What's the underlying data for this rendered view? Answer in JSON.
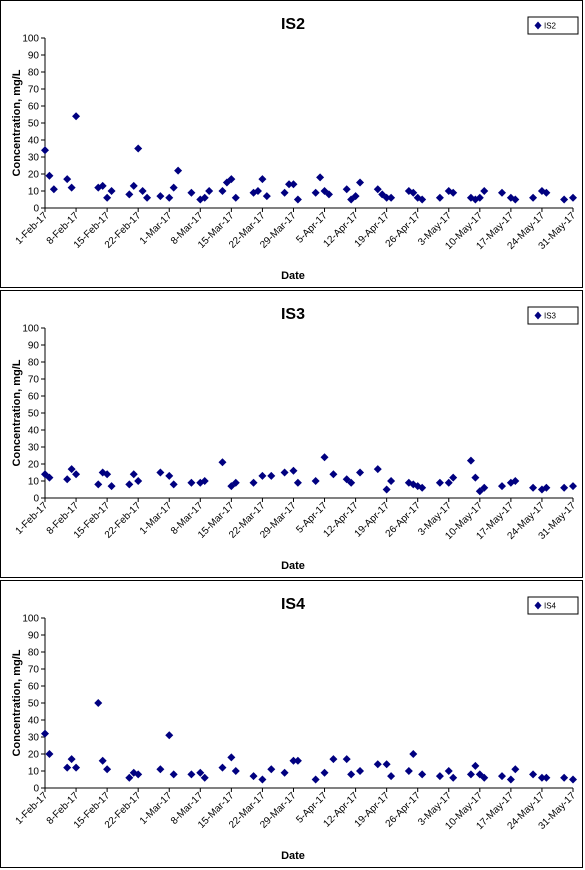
{
  "chart_data": [
    {
      "type": "scatter",
      "title": "IS2",
      "xlabel": "Date",
      "ylabel": "Concentration, mg/L",
      "ylim": [
        0,
        100
      ],
      "yticks": [
        0,
        10,
        20,
        30,
        40,
        50,
        60,
        70,
        80,
        90,
        100
      ],
      "xlim": [
        "2017-02-01",
        "2017-05-31"
      ],
      "xtick_labels": [
        "1-Feb-17",
        "8-Feb-17",
        "15-Feb-17",
        "22-Feb-17",
        "1-Mar-17",
        "8-Mar-17",
        "15-Mar-17",
        "22-Mar-17",
        "29-Mar-17",
        "5-Apr-17",
        "12-Apr-17",
        "19-Apr-17",
        "26-Apr-17",
        "3-May-17",
        "10-May-17",
        "17-May-17",
        "24-May-17",
        "31-May-17"
      ],
      "legend": "top-right",
      "marker": "diamond",
      "color": "#000080",
      "series": [
        {
          "name": "IS2",
          "x": [
            "2017-02-01",
            "2017-02-02",
            "2017-02-03",
            "2017-02-06",
            "2017-02-07",
            "2017-02-08",
            "2017-02-13",
            "2017-02-14",
            "2017-02-15",
            "2017-02-16",
            "2017-02-20",
            "2017-02-21",
            "2017-02-22",
            "2017-02-23",
            "2017-02-24",
            "2017-02-27",
            "2017-03-01",
            "2017-03-02",
            "2017-03-03",
            "2017-03-06",
            "2017-03-08",
            "2017-03-09",
            "2017-03-10",
            "2017-03-13",
            "2017-03-14",
            "2017-03-15",
            "2017-03-16",
            "2017-03-20",
            "2017-03-21",
            "2017-03-22",
            "2017-03-23",
            "2017-03-27",
            "2017-03-28",
            "2017-03-29",
            "2017-03-30",
            "2017-04-03",
            "2017-04-04",
            "2017-04-05",
            "2017-04-06",
            "2017-04-10",
            "2017-04-11",
            "2017-04-12",
            "2017-04-13",
            "2017-04-17",
            "2017-04-18",
            "2017-04-19",
            "2017-04-20",
            "2017-04-24",
            "2017-04-25",
            "2017-04-26",
            "2017-04-27",
            "2017-05-01",
            "2017-05-03",
            "2017-05-04",
            "2017-05-08",
            "2017-05-09",
            "2017-05-10",
            "2017-05-11",
            "2017-05-15",
            "2017-05-17",
            "2017-05-18",
            "2017-05-22",
            "2017-05-24",
            "2017-05-25",
            "2017-05-29",
            "2017-05-31"
          ],
          "y": [
            34,
            19,
            11,
            17,
            12,
            54,
            12,
            13,
            6,
            10,
            8,
            13,
            35,
            10,
            6,
            7,
            6,
            12,
            22,
            9,
            5,
            6,
            10,
            10,
            15,
            17,
            6,
            9,
            10,
            17,
            7,
            9,
            14,
            14,
            5,
            9,
            18,
            10,
            8,
            11,
            5,
            7,
            15,
            11,
            8,
            6,
            6,
            10,
            9,
            6,
            5,
            6,
            10,
            9,
            6,
            5,
            6,
            10,
            9,
            6,
            5,
            6,
            10,
            9,
            5,
            6
          ]
        }
      ]
    },
    {
      "type": "scatter",
      "title": "IS3",
      "xlabel": "Date",
      "ylabel": "Concentration, mg/L",
      "ylim": [
        0,
        100
      ],
      "yticks": [
        0,
        10,
        20,
        30,
        40,
        50,
        60,
        70,
        80,
        90,
        100
      ],
      "xlim": [
        "2017-02-01",
        "2017-05-31"
      ],
      "xtick_labels": [
        "1-Feb-17",
        "8-Feb-17",
        "15-Feb-17",
        "22-Feb-17",
        "1-Mar-17",
        "8-Mar-17",
        "15-Mar-17",
        "22-Mar-17",
        "29-Mar-17",
        "5-Apr-17",
        "12-Apr-17",
        "19-Apr-17",
        "26-Apr-17",
        "3-May-17",
        "10-May-17",
        "17-May-17",
        "24-May-17",
        "31-May-17"
      ],
      "legend": "top-right",
      "marker": "diamond",
      "color": "#000080",
      "series": [
        {
          "name": "IS3",
          "x": [
            "2017-02-01",
            "2017-02-02",
            "2017-02-06",
            "2017-02-07",
            "2017-02-08",
            "2017-02-13",
            "2017-02-14",
            "2017-02-15",
            "2017-02-16",
            "2017-02-20",
            "2017-02-21",
            "2017-02-22",
            "2017-02-27",
            "2017-03-01",
            "2017-03-02",
            "2017-03-06",
            "2017-03-08",
            "2017-03-09",
            "2017-03-13",
            "2017-03-15",
            "2017-03-16",
            "2017-03-20",
            "2017-03-22",
            "2017-03-24",
            "2017-03-27",
            "2017-03-29",
            "2017-03-30",
            "2017-04-03",
            "2017-04-05",
            "2017-04-07",
            "2017-04-10",
            "2017-04-11",
            "2017-04-13",
            "2017-04-17",
            "2017-04-19",
            "2017-04-20",
            "2017-04-24",
            "2017-04-25",
            "2017-04-26",
            "2017-04-27",
            "2017-05-01",
            "2017-05-03",
            "2017-05-04",
            "2017-05-08",
            "2017-05-09",
            "2017-05-10",
            "2017-05-11",
            "2017-05-15",
            "2017-05-17",
            "2017-05-18",
            "2017-05-22",
            "2017-05-24",
            "2017-05-25",
            "2017-05-29",
            "2017-05-31"
          ],
          "y": [
            14,
            12,
            11,
            17,
            14,
            8,
            15,
            14,
            7,
            8,
            14,
            10,
            15,
            13,
            8,
            9,
            9,
            10,
            21,
            7,
            9,
            9,
            13,
            13,
            15,
            16,
            9,
            10,
            24,
            14,
            11,
            9,
            15,
            17,
            5,
            10,
            9,
            8,
            7,
            6,
            9,
            9,
            12,
            22,
            12,
            4,
            6,
            7,
            9,
            10,
            6,
            5,
            6,
            6,
            7
          ]
        }
      ]
    },
    {
      "type": "scatter",
      "title": "IS4",
      "xlabel": "Date",
      "ylabel": "Concentration, mg/L",
      "ylim": [
        0,
        100
      ],
      "yticks": [
        0,
        10,
        20,
        30,
        40,
        50,
        60,
        70,
        80,
        90,
        100
      ],
      "xlim": [
        "2017-02-01",
        "2017-05-31"
      ],
      "xtick_labels": [
        "1-Feb-17",
        "8-Feb-17",
        "15-Feb-17",
        "22-Feb-17",
        "1-Mar-17",
        "8-Mar-17",
        "15-Mar-17",
        "22-Mar-17",
        "29-Mar-17",
        "5-Apr-17",
        "12-Apr-17",
        "19-Apr-17",
        "26-Apr-17",
        "3-May-17",
        "10-May-17",
        "17-May-17",
        "24-May-17",
        "31-May-17"
      ],
      "legend": "top-right",
      "marker": "diamond",
      "color": "#000080",
      "series": [
        {
          "name": "IS4",
          "x": [
            "2017-02-01",
            "2017-02-02",
            "2017-02-06",
            "2017-02-07",
            "2017-02-08",
            "2017-02-13",
            "2017-02-14",
            "2017-02-15",
            "2017-02-20",
            "2017-02-21",
            "2017-02-22",
            "2017-02-27",
            "2017-03-01",
            "2017-03-02",
            "2017-03-06",
            "2017-03-08",
            "2017-03-09",
            "2017-03-13",
            "2017-03-15",
            "2017-03-16",
            "2017-03-20",
            "2017-03-22",
            "2017-03-24",
            "2017-03-27",
            "2017-03-29",
            "2017-03-30",
            "2017-04-03",
            "2017-04-05",
            "2017-04-07",
            "2017-04-10",
            "2017-04-11",
            "2017-04-13",
            "2017-04-17",
            "2017-04-19",
            "2017-04-20",
            "2017-04-24",
            "2017-04-25",
            "2017-04-27",
            "2017-05-01",
            "2017-05-03",
            "2017-05-04",
            "2017-05-08",
            "2017-05-09",
            "2017-05-10",
            "2017-05-11",
            "2017-05-15",
            "2017-05-17",
            "2017-05-18",
            "2017-05-22",
            "2017-05-24",
            "2017-05-25",
            "2017-05-29",
            "2017-05-31"
          ],
          "y": [
            32,
            20,
            12,
            17,
            12,
            50,
            16,
            11,
            6,
            9,
            8,
            11,
            31,
            8,
            8,
            9,
            6,
            12,
            18,
            10,
            7,
            5,
            11,
            9,
            16,
            16,
            5,
            9,
            17,
            17,
            8,
            10,
            14,
            14,
            7,
            10,
            20,
            8,
            7,
            10,
            6,
            8,
            13,
            8,
            6,
            7,
            5,
            11,
            8,
            6,
            6,
            6,
            5
          ]
        }
      ]
    }
  ]
}
